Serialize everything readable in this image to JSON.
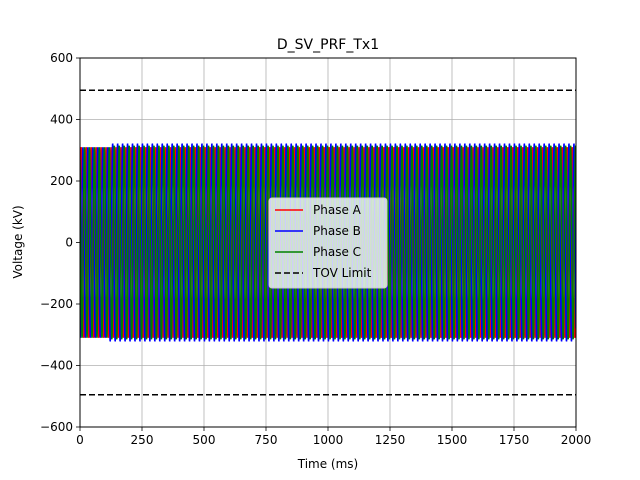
{
  "chart_data": {
    "type": "line",
    "title": "D_SV_PRF_Tx1",
    "xlabel": "Time (ms)",
    "ylabel": "Voltage (kV)",
    "xlim": [
      0,
      2000
    ],
    "ylim": [
      -600,
      600
    ],
    "xticks": [
      0,
      250,
      500,
      750,
      1000,
      1250,
      1500,
      1750,
      2000
    ],
    "xtick_labels": [
      "0",
      "250",
      "500",
      "750",
      "1000",
      "1250",
      "1500",
      "1750",
      "2000"
    ],
    "yticks": [
      -600,
      -400,
      -200,
      0,
      200,
      400,
      600
    ],
    "ytick_labels": [
      "−600",
      "−400",
      "−200",
      "0",
      "200",
      "400",
      "600"
    ],
    "grid": true,
    "legend_position": "center",
    "series": [
      {
        "name": "Phase A",
        "color": "#ff0000",
        "frequency_hz": 50,
        "phase_deg": 0,
        "amplitude_before_kV": 310,
        "amplitude_after_kV": 310
      },
      {
        "name": "Phase B",
        "color": "#0000ff",
        "frequency_hz": 50,
        "phase_deg": -120,
        "amplitude_before_kV": 310,
        "amplitude_after_kV": 322
      },
      {
        "name": "Phase C",
        "color": "#008000",
        "frequency_hz": 50,
        "phase_deg": 120,
        "amplitude_before_kV": 310,
        "amplitude_after_kV": 315
      }
    ],
    "event_time_ms": 120,
    "reference_lines": [
      {
        "name": "TOV Limit",
        "values": [
          495,
          -495
        ],
        "color": "#000000",
        "style": "dashed"
      }
    ]
  }
}
